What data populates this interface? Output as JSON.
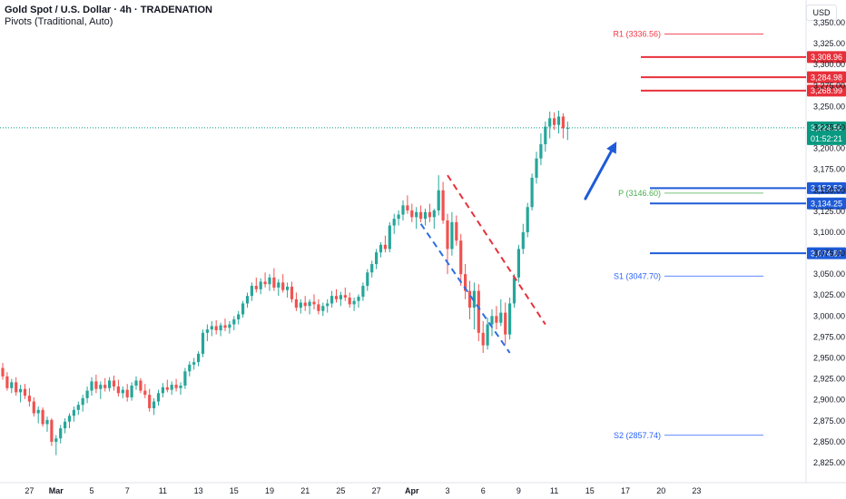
{
  "header": {
    "title": "Gold Spot / U.S. Dollar · 4h · TRADENATION",
    "indicator": "Pivots (Traditional, Auto)",
    "currency": "USD"
  },
  "colors": {
    "up": "#26a69a",
    "down": "#ef5350",
    "resistance": "#e8303b",
    "support": "#1e5bd8",
    "pivot_r": "#f23645",
    "pivot_p": "#4caf50",
    "pivot_s": "#2962ff",
    "last_price": "#089981"
  },
  "chart_data": {
    "type": "candlestick",
    "y_ticks": [
      3350,
      3325,
      3300,
      3275,
      3250,
      3225,
      3200,
      3175,
      3150,
      3125,
      3100,
      3075,
      3050,
      3025,
      3000,
      2975,
      2950,
      2925,
      2900,
      2875,
      2850,
      2825
    ],
    "y_tick_labels": [
      "3,350.00",
      "3,325.00",
      "3,300.00",
      "3,275.00",
      "3,250.00",
      "3,225.00",
      "3,200.00",
      "3,175.00",
      "3,150.00",
      "3,125.00",
      "3,100.00",
      "3,075.00",
      "3,050.00",
      "3,025.00",
      "3,000.00",
      "2,975.00",
      "2,950.00",
      "2,925.00",
      "2,900.00",
      "2,875.00",
      "2,850.00",
      "2,825.00"
    ],
    "x_ticks": [
      {
        "label": "27",
        "i": 6
      },
      {
        "label": "Mar",
        "i": 12
      },
      {
        "label": "5",
        "i": 20
      },
      {
        "label": "7",
        "i": 28
      },
      {
        "label": "11",
        "i": 36
      },
      {
        "label": "13",
        "i": 44
      },
      {
        "label": "15",
        "i": 52
      },
      {
        "label": "19",
        "i": 60
      },
      {
        "label": "21",
        "i": 68
      },
      {
        "label": "25",
        "i": 76
      },
      {
        "label": "27",
        "i": 84
      },
      {
        "label": "Apr",
        "i": 92
      },
      {
        "label": "3",
        "i": 100
      },
      {
        "label": "6",
        "i": 108
      },
      {
        "label": "9",
        "i": 116
      },
      {
        "label": "11",
        "i": 124
      },
      {
        "label": "15",
        "i": 132
      },
      {
        "label": "17",
        "i": 140
      },
      {
        "label": "20",
        "i": 148
      },
      {
        "label": "23",
        "i": 156
      }
    ],
    "candles": [
      {
        "o": 2938,
        "h": 2944,
        "l": 2924,
        "c": 2928
      },
      {
        "o": 2928,
        "h": 2933,
        "l": 2911,
        "c": 2914
      },
      {
        "o": 2914,
        "h": 2925,
        "l": 2908,
        "c": 2921
      },
      {
        "o": 2921,
        "h": 2927,
        "l": 2905,
        "c": 2909
      },
      {
        "o": 2909,
        "h": 2918,
        "l": 2897,
        "c": 2913
      },
      {
        "o": 2913,
        "h": 2919,
        "l": 2901,
        "c": 2905
      },
      {
        "o": 2905,
        "h": 2914,
        "l": 2892,
        "c": 2898
      },
      {
        "o": 2898,
        "h": 2903,
        "l": 2880,
        "c": 2884
      },
      {
        "o": 2884,
        "h": 2892,
        "l": 2872,
        "c": 2888
      },
      {
        "o": 2888,
        "h": 2891,
        "l": 2868,
        "c": 2871
      },
      {
        "o": 2871,
        "h": 2880,
        "l": 2862,
        "c": 2876
      },
      {
        "o": 2876,
        "h": 2878,
        "l": 2845,
        "c": 2850
      },
      {
        "o": 2850,
        "h": 2858,
        "l": 2834,
        "c": 2854
      },
      {
        "o": 2854,
        "h": 2870,
        "l": 2848,
        "c": 2866
      },
      {
        "o": 2866,
        "h": 2878,
        "l": 2860,
        "c": 2874
      },
      {
        "o": 2874,
        "h": 2884,
        "l": 2866,
        "c": 2881
      },
      {
        "o": 2881,
        "h": 2892,
        "l": 2874,
        "c": 2888
      },
      {
        "o": 2888,
        "h": 2898,
        "l": 2882,
        "c": 2894
      },
      {
        "o": 2894,
        "h": 2906,
        "l": 2886,
        "c": 2902
      },
      {
        "o": 2902,
        "h": 2916,
        "l": 2896,
        "c": 2911
      },
      {
        "o": 2911,
        "h": 2927,
        "l": 2905,
        "c": 2922
      },
      {
        "o": 2922,
        "h": 2930,
        "l": 2908,
        "c": 2913
      },
      {
        "o": 2913,
        "h": 2922,
        "l": 2901,
        "c": 2918
      },
      {
        "o": 2918,
        "h": 2926,
        "l": 2910,
        "c": 2914
      },
      {
        "o": 2914,
        "h": 2927,
        "l": 2910,
        "c": 2923
      },
      {
        "o": 2923,
        "h": 2929,
        "l": 2911,
        "c": 2916
      },
      {
        "o": 2916,
        "h": 2924,
        "l": 2904,
        "c": 2908
      },
      {
        "o": 2908,
        "h": 2916,
        "l": 2902,
        "c": 2912
      },
      {
        "o": 2912,
        "h": 2919,
        "l": 2898,
        "c": 2903
      },
      {
        "o": 2903,
        "h": 2921,
        "l": 2899,
        "c": 2917
      },
      {
        "o": 2917,
        "h": 2928,
        "l": 2912,
        "c": 2923
      },
      {
        "o": 2923,
        "h": 2926,
        "l": 2908,
        "c": 2911
      },
      {
        "o": 2911,
        "h": 2919,
        "l": 2902,
        "c": 2906
      },
      {
        "o": 2906,
        "h": 2913,
        "l": 2886,
        "c": 2890
      },
      {
        "o": 2890,
        "h": 2902,
        "l": 2882,
        "c": 2898
      },
      {
        "o": 2898,
        "h": 2912,
        "l": 2893,
        "c": 2908
      },
      {
        "o": 2908,
        "h": 2920,
        "l": 2903,
        "c": 2915
      },
      {
        "o": 2915,
        "h": 2924,
        "l": 2909,
        "c": 2912
      },
      {
        "o": 2912,
        "h": 2922,
        "l": 2906,
        "c": 2918
      },
      {
        "o": 2918,
        "h": 2925,
        "l": 2910,
        "c": 2914
      },
      {
        "o": 2914,
        "h": 2921,
        "l": 2906,
        "c": 2917
      },
      {
        "o": 2917,
        "h": 2938,
        "l": 2913,
        "c": 2934
      },
      {
        "o": 2934,
        "h": 2946,
        "l": 2928,
        "c": 2942
      },
      {
        "o": 2942,
        "h": 2950,
        "l": 2936,
        "c": 2945
      },
      {
        "o": 2945,
        "h": 2958,
        "l": 2940,
        "c": 2955
      },
      {
        "o": 2955,
        "h": 2984,
        "l": 2951,
        "c": 2980
      },
      {
        "o": 2980,
        "h": 2990,
        "l": 2970,
        "c": 2984
      },
      {
        "o": 2984,
        "h": 2994,
        "l": 2976,
        "c": 2988
      },
      {
        "o": 2988,
        "h": 2995,
        "l": 2978,
        "c": 2983
      },
      {
        "o": 2983,
        "h": 2992,
        "l": 2976,
        "c": 2989
      },
      {
        "o": 2989,
        "h": 2997,
        "l": 2982,
        "c": 2986
      },
      {
        "o": 2986,
        "h": 2994,
        "l": 2979,
        "c": 2990
      },
      {
        "o": 2990,
        "h": 3000,
        "l": 2983,
        "c": 2996
      },
      {
        "o": 2996,
        "h": 3006,
        "l": 2990,
        "c": 3002
      },
      {
        "o": 3002,
        "h": 3018,
        "l": 2998,
        "c": 3015
      },
      {
        "o": 3015,
        "h": 3028,
        "l": 3010,
        "c": 3024
      },
      {
        "o": 3024,
        "h": 3040,
        "l": 3018,
        "c": 3036
      },
      {
        "o": 3036,
        "h": 3046,
        "l": 3028,
        "c": 3032
      },
      {
        "o": 3032,
        "h": 3045,
        "l": 3026,
        "c": 3041
      },
      {
        "o": 3041,
        "h": 3052,
        "l": 3034,
        "c": 3038
      },
      {
        "o": 3038,
        "h": 3050,
        "l": 3030,
        "c": 3046
      },
      {
        "o": 3046,
        "h": 3057,
        "l": 3030,
        "c": 3034
      },
      {
        "o": 3034,
        "h": 3044,
        "l": 3024,
        "c": 3040
      },
      {
        "o": 3040,
        "h": 3050,
        "l": 3028,
        "c": 3031
      },
      {
        "o": 3031,
        "h": 3040,
        "l": 3022,
        "c": 3035
      },
      {
        "o": 3035,
        "h": 3041,
        "l": 3016,
        "c": 3020
      },
      {
        "o": 3020,
        "h": 3028,
        "l": 3006,
        "c": 3010
      },
      {
        "o": 3010,
        "h": 3020,
        "l": 3003,
        "c": 3016
      },
      {
        "o": 3016,
        "h": 3024,
        "l": 3006,
        "c": 3012
      },
      {
        "o": 3012,
        "h": 3020,
        "l": 3002,
        "c": 3017
      },
      {
        "o": 3017,
        "h": 3026,
        "l": 3008,
        "c": 3014
      },
      {
        "o": 3014,
        "h": 3020,
        "l": 3002,
        "c": 3006
      },
      {
        "o": 3006,
        "h": 3016,
        "l": 3000,
        "c": 3012
      },
      {
        "o": 3012,
        "h": 3020,
        "l": 3004,
        "c": 3015
      },
      {
        "o": 3015,
        "h": 3030,
        "l": 3010,
        "c": 3024
      },
      {
        "o": 3024,
        "h": 3032,
        "l": 3016,
        "c": 3020
      },
      {
        "o": 3020,
        "h": 3029,
        "l": 3012,
        "c": 3025
      },
      {
        "o": 3025,
        "h": 3034,
        "l": 3018,
        "c": 3022
      },
      {
        "o": 3022,
        "h": 3028,
        "l": 3010,
        "c": 3014
      },
      {
        "o": 3014,
        "h": 3022,
        "l": 3006,
        "c": 3018
      },
      {
        "o": 3018,
        "h": 3026,
        "l": 3010,
        "c": 3023
      },
      {
        "o": 3023,
        "h": 3040,
        "l": 3018,
        "c": 3036
      },
      {
        "o": 3036,
        "h": 3056,
        "l": 3030,
        "c": 3052
      },
      {
        "o": 3052,
        "h": 3066,
        "l": 3046,
        "c": 3062
      },
      {
        "o": 3062,
        "h": 3080,
        "l": 3056,
        "c": 3076
      },
      {
        "o": 3076,
        "h": 3088,
        "l": 3070,
        "c": 3085
      },
      {
        "o": 3085,
        "h": 3096,
        "l": 3076,
        "c": 3080
      },
      {
        "o": 3080,
        "h": 3112,
        "l": 3076,
        "c": 3108
      },
      {
        "o": 3108,
        "h": 3122,
        "l": 3098,
        "c": 3116
      },
      {
        "o": 3116,
        "h": 3126,
        "l": 3108,
        "c": 3121
      },
      {
        "o": 3121,
        "h": 3138,
        "l": 3114,
        "c": 3132
      },
      {
        "o": 3132,
        "h": 3144,
        "l": 3122,
        "c": 3126
      },
      {
        "o": 3126,
        "h": 3134,
        "l": 3112,
        "c": 3118
      },
      {
        "o": 3118,
        "h": 3130,
        "l": 3104,
        "c": 3124
      },
      {
        "o": 3124,
        "h": 3132,
        "l": 3112,
        "c": 3116
      },
      {
        "o": 3116,
        "h": 3128,
        "l": 3108,
        "c": 3124
      },
      {
        "o": 3124,
        "h": 3134,
        "l": 3112,
        "c": 3118
      },
      {
        "o": 3118,
        "h": 3128,
        "l": 3104,
        "c": 3126
      },
      {
        "o": 3126,
        "h": 3168,
        "l": 3120,
        "c": 3150
      },
      {
        "o": 3150,
        "h": 3160,
        "l": 3110,
        "c": 3114
      },
      {
        "o": 3114,
        "h": 3122,
        "l": 3050,
        "c": 3080
      },
      {
        "o": 3080,
        "h": 3124,
        "l": 3072,
        "c": 3112
      },
      {
        "o": 3112,
        "h": 3120,
        "l": 3084,
        "c": 3090
      },
      {
        "o": 3090,
        "h": 3098,
        "l": 3036,
        "c": 3050
      },
      {
        "o": 3050,
        "h": 3062,
        "l": 3020,
        "c": 3030
      },
      {
        "o": 3030,
        "h": 3042,
        "l": 2996,
        "c": 3010
      },
      {
        "o": 3010,
        "h": 3040,
        "l": 2984,
        "c": 3030
      },
      {
        "o": 3030,
        "h": 3038,
        "l": 2970,
        "c": 2980
      },
      {
        "o": 2980,
        "h": 2994,
        "l": 2956,
        "c": 2965
      },
      {
        "o": 2965,
        "h": 2998,
        "l": 2960,
        "c": 2990
      },
      {
        "o": 2990,
        "h": 3008,
        "l": 2976,
        "c": 3000
      },
      {
        "o": 3000,
        "h": 3012,
        "l": 2984,
        "c": 2992
      },
      {
        "o": 2992,
        "h": 3020,
        "l": 2988,
        "c": 3004
      },
      {
        "o": 3004,
        "h": 3016,
        "l": 2966,
        "c": 2978
      },
      {
        "o": 2978,
        "h": 3022,
        "l": 2972,
        "c": 3015
      },
      {
        "o": 3015,
        "h": 3050,
        "l": 3010,
        "c": 3046
      },
      {
        "o": 3046,
        "h": 3085,
        "l": 3040,
        "c": 3080
      },
      {
        "o": 3080,
        "h": 3110,
        "l": 3074,
        "c": 3100
      },
      {
        "o": 3100,
        "h": 3135,
        "l": 3094,
        "c": 3130
      },
      {
        "o": 3130,
        "h": 3170,
        "l": 3126,
        "c": 3165
      },
      {
        "o": 3165,
        "h": 3196,
        "l": 3158,
        "c": 3188
      },
      {
        "o": 3188,
        "h": 3218,
        "l": 3180,
        "c": 3205
      },
      {
        "o": 3205,
        "h": 3232,
        "l": 3196,
        "c": 3226
      },
      {
        "o": 3226,
        "h": 3244,
        "l": 3212,
        "c": 3236
      },
      {
        "o": 3236,
        "h": 3243,
        "l": 3222,
        "c": 3228
      },
      {
        "o": 3228,
        "h": 3245,
        "l": 3218,
        "c": 3238
      },
      {
        "o": 3238,
        "h": 3242,
        "l": 3212,
        "c": 3224
      },
      {
        "o": 3224,
        "h": 3232,
        "l": 3210,
        "c": 3224.56
      }
    ],
    "pivots": [
      {
        "label": "R1 (3336.56)",
        "value": 3336.56,
        "kind": "r"
      },
      {
        "label": "P (3146.60)",
        "value": 3146.6,
        "kind": "p"
      },
      {
        "label": "S1 (3047.70)",
        "value": 3047.7,
        "kind": "s"
      },
      {
        "label": "S2 (2857.74)",
        "value": 2857.74,
        "kind": "s"
      }
    ],
    "levels": [
      {
        "label": "3,308.96",
        "value": 3308.96,
        "kind": "resistance"
      },
      {
        "label": "3,284.98",
        "value": 3284.98,
        "kind": "resistance"
      },
      {
        "label": "3,268.99",
        "value": 3268.99,
        "kind": "resistance"
      },
      {
        "label": "3,152.52",
        "value": 3152.52,
        "kind": "support"
      },
      {
        "label": "3,134.25",
        "value": 3134.25,
        "kind": "support"
      },
      {
        "label": "3,074.87",
        "value": 3074.87,
        "kind": "support"
      }
    ],
    "last_price": {
      "label": "3,224.56",
      "value": 3224.56,
      "countdown": "01:52:21"
    },
    "channel": {
      "upper": [
        {
          "i": 100,
          "v": 3168
        },
        {
          "i": 122,
          "v": 2990
        }
      ],
      "lower": [
        {
          "i": 94,
          "v": 3110
        },
        {
          "i": 114,
          "v": 2956
        }
      ]
    },
    "arrow": {
      "from": {
        "i": 131,
        "v": 3140
      },
      "to": {
        "i": 138,
        "v": 3208
      }
    }
  }
}
